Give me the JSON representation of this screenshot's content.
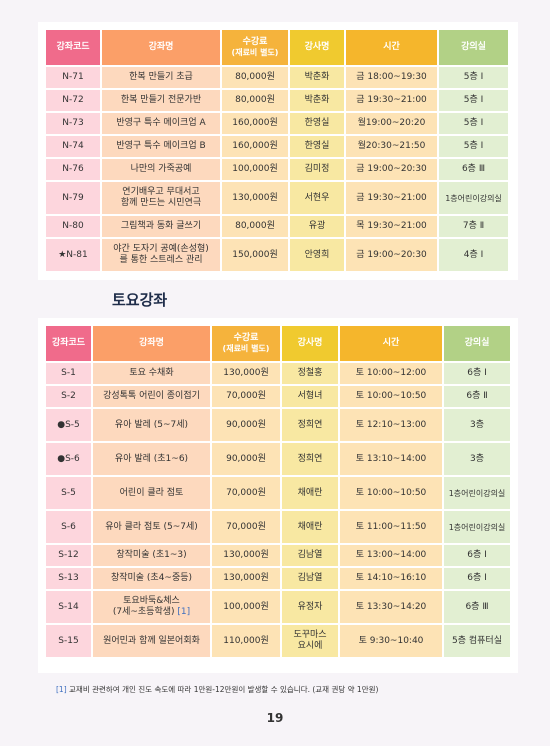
{
  "weekday_table": {
    "headers": {
      "code": "강좌코드",
      "name": "강좌명",
      "fee": "수강료",
      "fee_sub": "(재료비 별도)",
      "instructor": "강사명",
      "time": "시간",
      "room": "강의실"
    },
    "rows": [
      {
        "code": "N-71",
        "name": "한복 만들기 초급",
        "fee": "80,000원",
        "instructor": "박춘화",
        "time": "금 18:00~19:30",
        "room": "5층 I"
      },
      {
        "code": "N-72",
        "name": "한복 만들기 전문가반",
        "fee": "80,000원",
        "instructor": "박춘화",
        "time": "금 19:30~21:00",
        "room": "5층 I"
      },
      {
        "code": "N-73",
        "name": "반영구 특수 메이크업 A",
        "fee": "160,000원",
        "instructor": "한영실",
        "time": "월19:00~20:20",
        "room": "5층 I"
      },
      {
        "code": "N-74",
        "name": "반영구 특수 메이크업 B",
        "fee": "160,000원",
        "instructor": "한영실",
        "time": "월20:30~21:50",
        "room": "5층 I"
      },
      {
        "code": "N-76",
        "name": "나만의 가죽공예",
        "fee": "100,000원",
        "instructor": "김미정",
        "time": "금 19:00~20:30",
        "room": "6층 Ⅲ"
      },
      {
        "code": "N-79",
        "name": "연기배우고 무대서고",
        "name2": "함께 만드는 시민연극",
        "fee": "130,000원",
        "instructor": "서현우",
        "time": "금 19:30~21:00",
        "room": "1층어린이강의실"
      },
      {
        "code": "N-80",
        "name": "그림책과 동화 글쓰기",
        "fee": "80,000원",
        "instructor": "유광",
        "time": "목 19:30~21:00",
        "room": "7층 Ⅱ"
      },
      {
        "code": "★N-81",
        "name": "야간 도자기 공예(손성형)",
        "name2": "를 통한 스트레스 관리",
        "fee": "150,000원",
        "instructor": "안영희",
        "time": "금 19:00~20:30",
        "room": "4층 I"
      }
    ]
  },
  "saturday_section": {
    "title": "토요강좌",
    "headers": {
      "code": "강좌코드",
      "name": "강좌명",
      "fee": "수강료",
      "fee_sub": "(재료비 별도)",
      "instructor": "강사명",
      "time": "시간",
      "room": "강의실"
    },
    "rows": [
      {
        "code": "S-1",
        "name": "토요 수채화",
        "fee": "130,000원",
        "instructor": "정철홍",
        "time": "토 10:00~12:00",
        "room": "6층 I"
      },
      {
        "code": "S-2",
        "name": "강성톡톡 어린이 종이접기",
        "fee": "70,000원",
        "instructor": "서형녀",
        "time": "토 10:00~10:50",
        "room": "6층 Ⅱ"
      },
      {
        "code": "●S-5",
        "name": "유아 발레 (5~7세)",
        "fee": "90,000원",
        "instructor": "정희연",
        "time": "토 12:10~13:00",
        "room": "3층"
      },
      {
        "code": "●S-6",
        "name": "유아 발레 (초1~6)",
        "fee": "90,000원",
        "instructor": "정희연",
        "time": "토 13:10~14:00",
        "room": "3층"
      },
      {
        "code": "S-5",
        "name": "어린이 클라 점토",
        "fee": "70,000원",
        "instructor": "채애란",
        "time": "토 10:00~10:50",
        "room": "1층어린이강의실"
      },
      {
        "code": "S-6",
        "name": "유아 클라 점토 (5~7세)",
        "fee": "70,000원",
        "instructor": "채애란",
        "time": "토 11:00~11:50",
        "room": "1층어린이강의실"
      },
      {
        "code": "S-12",
        "name": "창작미술 (초1~3)",
        "fee": "130,000원",
        "instructor": "김남열",
        "time": "토 13:00~14:00",
        "room": "6층 I"
      },
      {
        "code": "S-13",
        "name": "창작미술 (초4~중등)",
        "fee": "130,000원",
        "instructor": "김남열",
        "time": "토 14:10~16:10",
        "room": "6층 I"
      },
      {
        "code": "S-14",
        "name": "토요바둑&체스",
        "name2": "(7세~초등학생)",
        "name2_note": "[1]",
        "fee": "100,000원",
        "instructor": "유정자",
        "time": "토 13:30~14:20",
        "room": "6층 Ⅲ"
      },
      {
        "code": "S-15",
        "name": "원어민과 함께 일본어회화",
        "fee": "110,000원",
        "instructor": "도꾸마스",
        "instructor2": "요시에",
        "time": "토 9:30~10:40",
        "room": "5층 컴퓨터실"
      }
    ]
  },
  "footnote": {
    "marker": "[1]",
    "text": "교재비 관련하여 개인 진도 속도에 따라 1만원-12만원이 발생할 수 있습니다. (교재 권당 약 1만원)"
  },
  "page_number": "19",
  "colors": {
    "code_header": "#f06b8b",
    "name_header": "#fb9f68",
    "fee_header": "#f5b33c",
    "instructor_header": "#f0ca2f",
    "time_header": "#f5b62c",
    "room_header": "#b2d186",
    "title_text": "#1f2d4a",
    "note_marker": "#3f6fbf"
  }
}
